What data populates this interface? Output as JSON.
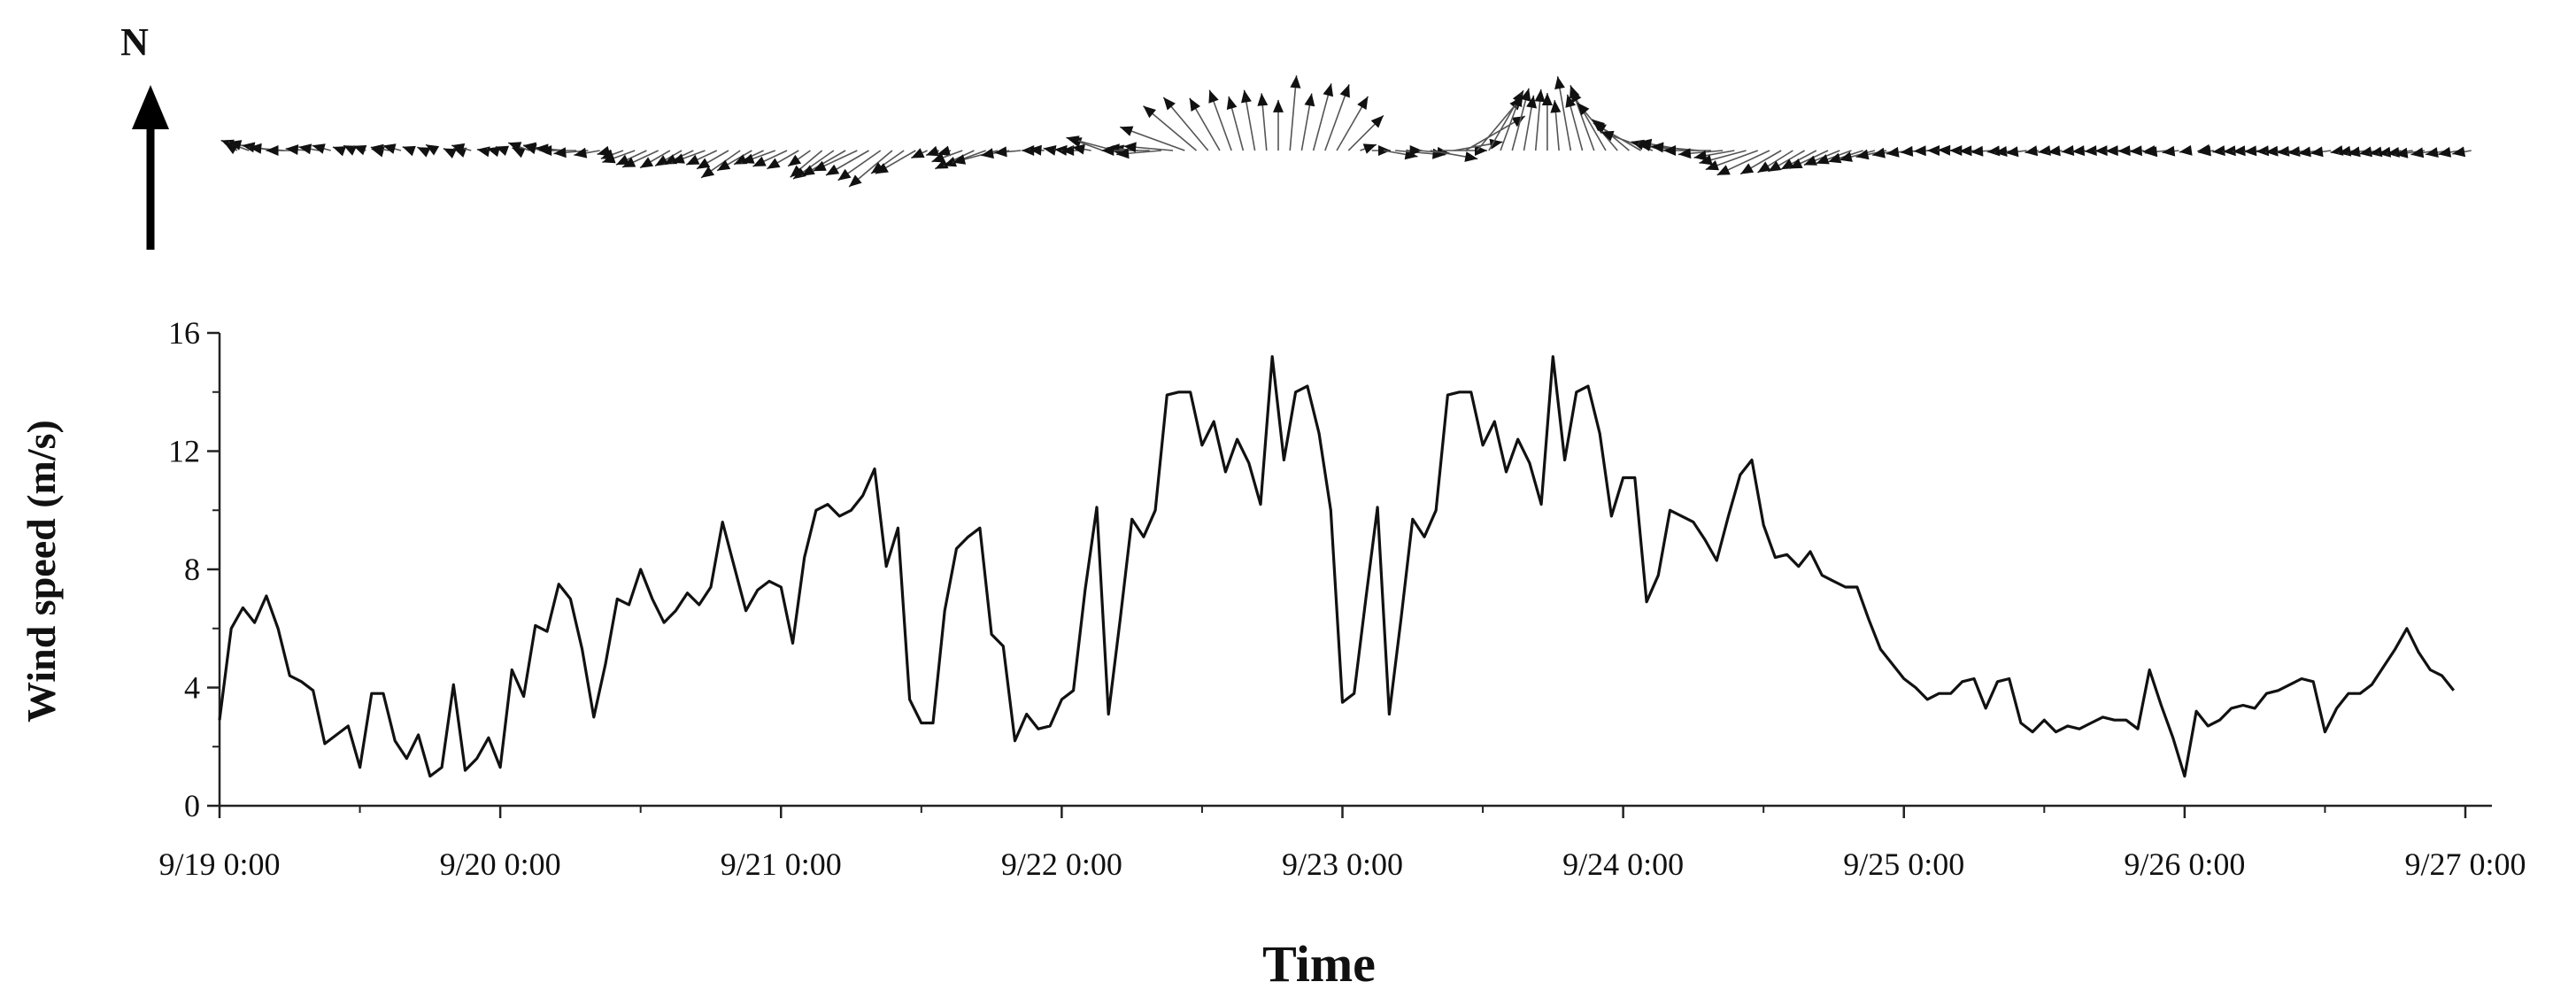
{
  "north_label": "N",
  "chart_data": {
    "type": "line",
    "title": "",
    "xlabel": "Time",
    "ylabel": "Wind speed (m/s)",
    "ylim": [
      0,
      16
    ],
    "yticks": [
      0,
      4,
      8,
      12,
      16
    ],
    "xlim_hours": [
      0,
      192
    ],
    "xtick_labels": [
      "9/19 0:00",
      "9/20 0:00",
      "9/21 0:00",
      "9/22 0:00",
      "9/23 0:00",
      "9/24 0:00",
      "9/25 0:00",
      "9/26 0:00",
      "9/27 0:00"
    ],
    "x_hours": [
      0,
      1,
      2,
      3,
      4,
      5,
      6,
      7,
      8,
      9,
      10,
      11,
      12,
      13,
      14,
      15,
      16,
      17,
      18,
      19,
      20,
      21,
      22,
      23,
      24,
      25,
      26,
      27,
      28,
      29,
      30,
      31,
      32,
      33,
      34,
      35,
      36,
      37,
      38,
      39,
      40,
      41,
      42,
      43,
      44,
      45,
      46,
      47,
      48,
      49,
      50,
      51,
      52,
      53,
      54,
      55,
      56,
      57,
      58,
      59,
      60,
      61,
      62,
      63,
      64,
      65,
      66,
      67,
      68,
      69,
      70,
      71,
      72,
      73,
      74,
      75,
      76,
      77,
      78,
      79,
      80,
      81,
      82,
      83,
      84,
      85,
      86,
      87,
      88,
      89,
      90,
      91,
      92,
      93,
      94,
      95,
      96,
      97,
      98,
      99,
      100,
      101,
      102,
      103,
      104,
      105,
      106,
      107,
      108,
      109,
      110,
      111,
      112,
      113,
      114,
      115,
      116,
      117,
      118,
      119,
      120,
      121,
      122,
      123,
      124,
      125,
      126,
      127,
      128,
      129,
      130,
      131,
      132,
      133,
      134,
      135,
      136,
      137,
      138,
      139,
      140,
      141,
      142,
      143,
      144,
      145,
      146,
      147,
      148,
      149,
      150,
      151,
      152,
      153,
      154,
      155,
      156,
      157,
      158,
      159,
      160,
      161,
      162,
      163,
      164,
      165,
      166,
      167,
      168,
      169,
      170,
      171,
      172,
      173,
      174,
      175,
      176,
      177,
      178,
      179,
      180,
      181,
      182,
      183,
      184,
      185,
      186,
      187,
      188,
      189,
      190,
      191
    ],
    "wind_speed": [
      2.9,
      6.0,
      6.7,
      6.2,
      7.1,
      6.0,
      4.4,
      4.2,
      3.9,
      2.1,
      2.4,
      2.7,
      1.3,
      3.8,
      3.8,
      2.2,
      1.6,
      2.4,
      1.0,
      1.3,
      4.1,
      1.2,
      1.6,
      2.3,
      1.3,
      4.6,
      3.7,
      6.1,
      5.9,
      7.5,
      7.0,
      5.3,
      3.0,
      4.8,
      7.0,
      6.8,
      8.0,
      7.0,
      6.2,
      6.6,
      7.2,
      6.8,
      7.4,
      9.6,
      8.1,
      6.6,
      7.3,
      7.6,
      7.4,
      5.5,
      8.4,
      10.0,
      10.2,
      9.8,
      10.0,
      10.5,
      11.4,
      8.1,
      9.4,
      3.6,
      2.8,
      2.8,
      6.6,
      8.7,
      9.1,
      9.4,
      5.8,
      5.4,
      2.2,
      3.1,
      2.6,
      2.7,
      3.6,
      3.9,
      7.3,
      10.1,
      3.1,
      6.3,
      9.7,
      9.1,
      10.0,
      13.9,
      14.0,
      14.0,
      12.2,
      13.0,
      11.3,
      12.4,
      11.6,
      10.2,
      15.2,
      11.7,
      14.0,
      14.2,
      12.6,
      10.0,
      3.5,
      3.8,
      7.0,
      10.1,
      3.1,
      6.3,
      9.7,
      9.1,
      10.0,
      13.9,
      14.0,
      14.0,
      12.2,
      13.0,
      11.3,
      12.4,
      11.6,
      10.2,
      15.2,
      11.7,
      14.0,
      14.2,
      12.6,
      9.8,
      11.1,
      11.1,
      6.9,
      7.8,
      10.0,
      9.8,
      9.6,
      9.0,
      8.3,
      9.8,
      11.2,
      11.7,
      9.5,
      8.4,
      8.5,
      8.1,
      8.6,
      7.8,
      7.6,
      7.4,
      7.4,
      6.3,
      5.3,
      4.8,
      4.3,
      4.0,
      3.6,
      3.8,
      3.8,
      4.2,
      4.3,
      3.3,
      4.2,
      4.3,
      2.8,
      2.5,
      2.9,
      2.5,
      2.7,
      2.6,
      2.8,
      3.0,
      2.9,
      2.9,
      2.6,
      4.6,
      3.4,
      2.3,
      1.0,
      3.2,
      2.7,
      2.9,
      3.3,
      3.4,
      3.3,
      3.8,
      3.9,
      4.1,
      4.3,
      4.2,
      2.5,
      3.3,
      3.8,
      3.8,
      4.1,
      4.7,
      5.3,
      6.0,
      5.2,
      4.6,
      4.4,
      3.9,
      3.5
    ],
    "wind_dir_deg": [
      300,
      290,
      285,
      280,
      275,
      270,
      275,
      280,
      285,
      290,
      295,
      290,
      285,
      280,
      285,
      290,
      295,
      300,
      295,
      290,
      285,
      280,
      285,
      290,
      295,
      290,
      285,
      280,
      275,
      270,
      265,
      260,
      255,
      250,
      250,
      245,
      245,
      240,
      240,
      245,
      250,
      245,
      240,
      235,
      240,
      245,
      250,
      245,
      240,
      235,
      230,
      235,
      240,
      245,
      240,
      235,
      230,
      235,
      240,
      245,
      250,
      255,
      250,
      245,
      250,
      255,
      260,
      265,
      270,
      275,
      280,
      275,
      270,
      280,
      290,
      285,
      280,
      275,
      270,
      265,
      275,
      290,
      310,
      320,
      330,
      340,
      345,
      350,
      355,
      0,
      5,
      10,
      15,
      20,
      30,
      45,
      70,
      90,
      100,
      95,
      90,
      95,
      100,
      90,
      80,
      60,
      40,
      30,
      20,
      15,
      10,
      5,
      0,
      355,
      350,
      345,
      340,
      330,
      320,
      310,
      300,
      290,
      285,
      280,
      280,
      275,
      270,
      265,
      260,
      255,
      250,
      245,
      240,
      238,
      240,
      242,
      245,
      248,
      250,
      252,
      255,
      258,
      260,
      262,
      265,
      268,
      270,
      272,
      270,
      268,
      266,
      265,
      264,
      263,
      262,
      262,
      263,
      264,
      265,
      266,
      268,
      268,
      267,
      266,
      265,
      264,
      263,
      262,
      262,
      263,
      264,
      265,
      266,
      266,
      266,
      265,
      264,
      263,
      262,
      262,
      261,
      261,
      260,
      260,
      261,
      262,
      263,
      262,
      261,
      260,
      260,
      260
    ]
  }
}
